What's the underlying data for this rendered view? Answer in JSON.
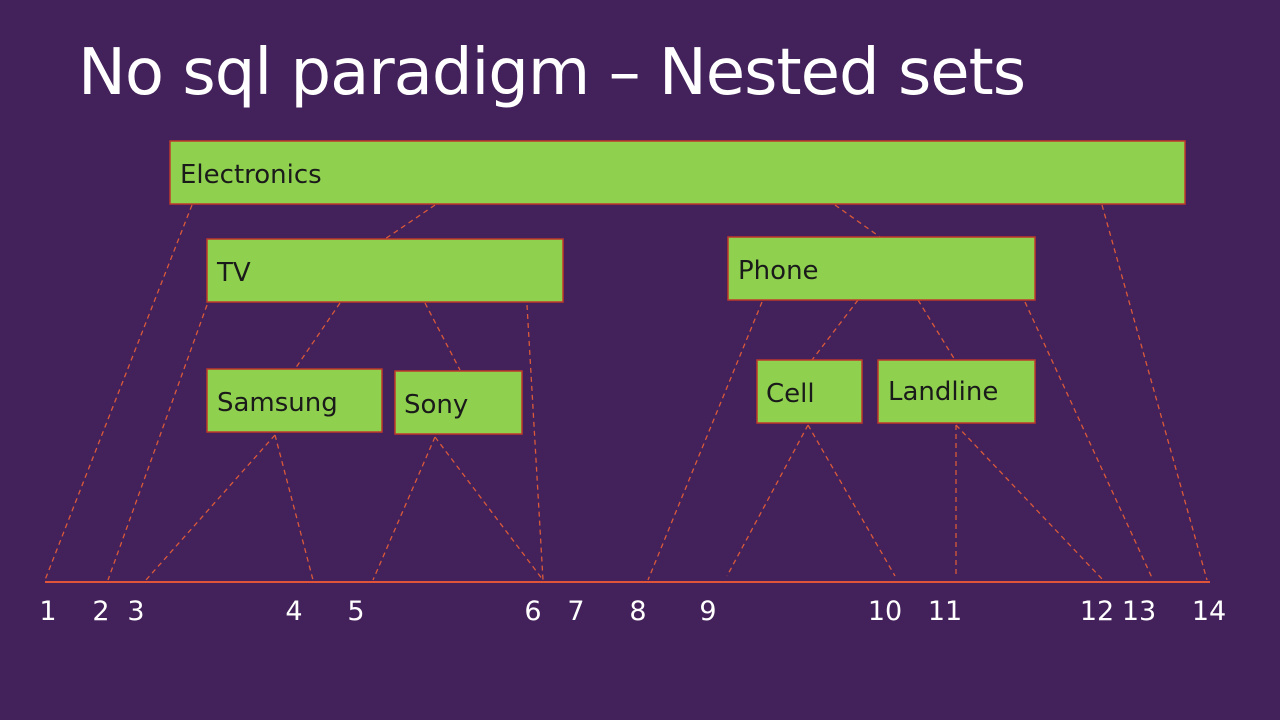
{
  "slide": {
    "title": "No sql paradigm – Nested sets"
  },
  "colors": {
    "background": "#43215a",
    "node_fill": "#8fd14f",
    "node_border": "#c0392b",
    "connector": "#d9593a",
    "text_light": "#ffffff",
    "text_dark": "#1a1a1a"
  },
  "nodes": [
    {
      "id": "electronics",
      "label": "Electronics",
      "left": 1,
      "right": 14
    },
    {
      "id": "tv",
      "label": "TV",
      "left": 2,
      "right": 7
    },
    {
      "id": "samsung",
      "label": "Samsung",
      "left": 3,
      "right": 4
    },
    {
      "id": "sony",
      "label": "Sony",
      "left": 5,
      "right": 6
    },
    {
      "id": "phone",
      "label": "Phone",
      "left": 8,
      "right": 13
    },
    {
      "id": "cell",
      "label": "Cell",
      "left": 9,
      "right": 10
    },
    {
      "id": "landline",
      "label": "Landline",
      "left": 11,
      "right": 12
    }
  ],
  "number_line": [
    "1",
    "2",
    "3",
    "4",
    "5",
    "6",
    "7",
    "8",
    "9",
    "10",
    "11",
    "12",
    "13",
    "14"
  ]
}
